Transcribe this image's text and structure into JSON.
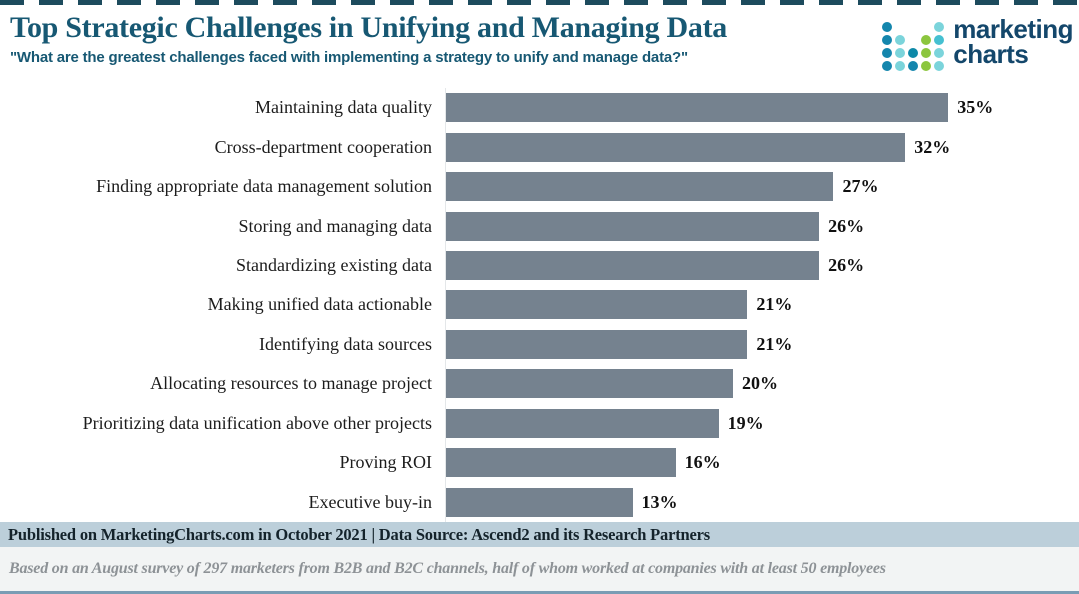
{
  "header": {
    "title": "Top Strategic Challenges in Unifying and Managing Data",
    "subtitle": "\"What are the greatest challenges faced with implementing a strategy to unify and manage data?\"",
    "logo": {
      "line1": "marketing",
      "line2": "charts",
      "dot_grid": [
        [
          "#1486ad",
          null,
          null,
          null,
          "#7bd4db"
        ],
        [
          "#1486ad",
          "#7bd4db",
          null,
          "#8cc63e",
          "#45c0d1"
        ],
        [
          "#1486ad",
          "#7bd4db",
          "#0d89a8",
          "#8cc63e",
          "#7bd4db"
        ],
        [
          "#1486ad",
          "#7bd4db",
          "#1486ad",
          "#8cc63e",
          "#7bd4db"
        ]
      ]
    }
  },
  "chart_data": {
    "type": "bar",
    "orientation": "horizontal",
    "title": "Top Strategic Challenges in Unifying and Managing Data",
    "categories": [
      "Maintaining data quality",
      "Cross-department cooperation",
      "Finding appropriate data management solution",
      "Storing and managing data",
      "Standardizing existing data",
      "Making unified data actionable",
      "Identifying data sources",
      "Allocating resources to manage project",
      "Prioritizing data unification above other projects",
      "Proving ROI",
      "Executive buy-in"
    ],
    "values": [
      35,
      32,
      27,
      26,
      26,
      21,
      21,
      20,
      19,
      16,
      13
    ],
    "value_suffix": "%",
    "xlim": [
      0,
      35
    ],
    "grid": false,
    "legend": false,
    "bar_color": "#75828f"
  },
  "footer": {
    "published": "Published on MarketingCharts.com in October 2021 | Data Source: Ascend2 and its Research Partners",
    "note": "Based on an August survey of 297 marketers from B2B and B2C channels, half of whom worked at companies with at least 50 employees"
  },
  "colors": {
    "title_text": "#175873",
    "bar": "#75828f",
    "published_bg": "#bccfda",
    "note_bg": "#f2f4f4",
    "note_text": "#8d9296",
    "bottom_border": "#7a9cb4",
    "logo_text": "#14476b"
  }
}
